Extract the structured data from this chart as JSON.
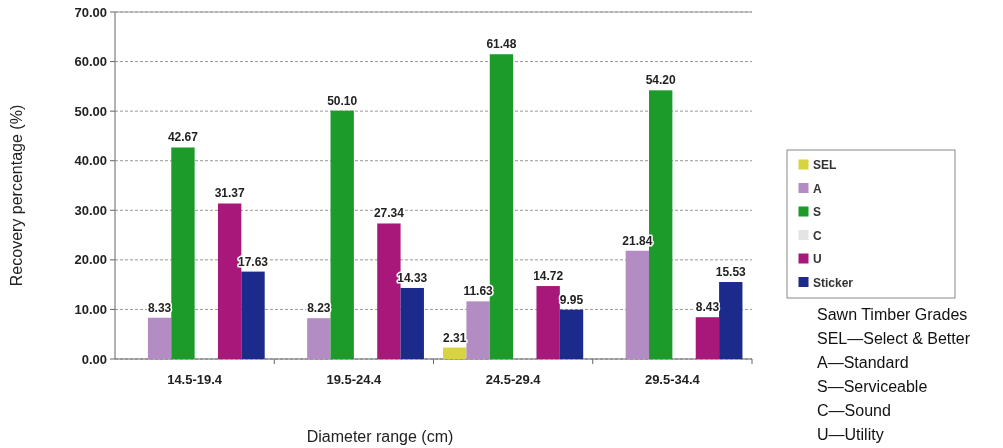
{
  "chart_data": {
    "type": "bar",
    "xlabel": "Diameter range (cm)",
    "ylabel": "Recovery percentage (%)",
    "categories": [
      "14.5-19.4",
      "19.5-24.4",
      "24.5-29.4",
      "29.5-34.4"
    ],
    "series": [
      {
        "name": "SEL",
        "color": "#d8d440",
        "values": [
          null,
          null,
          2.31,
          null
        ],
        "value_labels": [
          null,
          null,
          "2.31",
          null
        ]
      },
      {
        "name": "A",
        "color": "#b48cc4",
        "values": [
          8.33,
          8.23,
          11.63,
          21.84
        ],
        "value_labels": [
          "8.33",
          "8.23",
          "11.63",
          "21.84"
        ]
      },
      {
        "name": "S",
        "color": "#1c9a2a",
        "values": [
          42.67,
          50.1,
          61.48,
          54.2
        ],
        "value_labels": [
          "42.67",
          "50.10",
          "61.48",
          "54.20"
        ]
      },
      {
        "name": "C",
        "color": "#e4e4e4",
        "values": [
          null,
          null,
          null,
          null
        ]
      },
      {
        "name": "U",
        "color": "#a8187a",
        "values": [
          31.37,
          27.34,
          14.72,
          8.43
        ],
        "value_labels": [
          "31.37",
          "27.34",
          "14.72",
          "8.43"
        ]
      },
      {
        "name": "Sticker",
        "color": "#1c2a8c",
        "values": [
          17.63,
          14.33,
          9.95,
          15.53
        ],
        "value_labels": [
          "17.63",
          "14.33",
          "9.95",
          "15.53"
        ]
      }
    ],
    "ylim": [
      0,
      70
    ],
    "yticks": [
      {
        "value": 0,
        "label": "0.00"
      },
      {
        "value": 10,
        "label": "10.00"
      },
      {
        "value": 20,
        "label": "20.00"
      },
      {
        "value": 30,
        "label": "30.00"
      },
      {
        "value": 40,
        "label": "40.00"
      },
      {
        "value": 50,
        "label": "50.00"
      },
      {
        "value": 60,
        "label": "60.00"
      },
      {
        "value": 70,
        "label": "70.00"
      }
    ],
    "grid": "y",
    "legend": "right",
    "annotations": [
      "Sawn Timber Grades",
      "SEL—Select & Better",
      "A—Standard",
      "S—Serviceable",
      "C—Sound",
      "U—Utility"
    ]
  }
}
